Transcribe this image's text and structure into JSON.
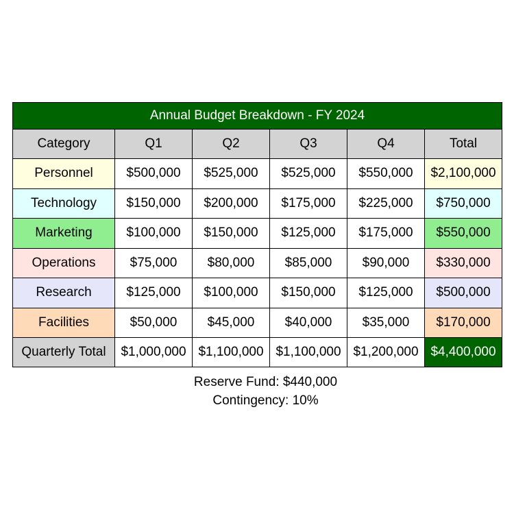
{
  "chart_data": {
    "type": "table",
    "title": "Annual Budget Breakdown - FY 2024",
    "columns": [
      "Category",
      "Q1",
      "Q2",
      "Q3",
      "Q4",
      "Total"
    ],
    "rows": [
      {
        "category": "Personnel",
        "values": [
          "$500,000",
          "$525,000",
          "$525,000",
          "$550,000"
        ],
        "total": "$2,100,000",
        "color": "#ffffe0"
      },
      {
        "category": "Technology",
        "values": [
          "$150,000",
          "$200,000",
          "$175,000",
          "$225,000"
        ],
        "total": "$750,000",
        "color": "#e0ffff"
      },
      {
        "category": "Marketing",
        "values": [
          "$100,000",
          "$150,000",
          "$125,000",
          "$175,000"
        ],
        "total": "$550,000",
        "color": "#90ee90"
      },
      {
        "category": "Operations",
        "values": [
          "$75,000",
          "$80,000",
          "$85,000",
          "$90,000"
        ],
        "total": "$330,000",
        "color": "#ffe4e1"
      },
      {
        "category": "Research",
        "values": [
          "$125,000",
          "$100,000",
          "$150,000",
          "$125,000"
        ],
        "total": "$500,000",
        "color": "#e6e6fa"
      },
      {
        "category": "Facilities",
        "values": [
          "$50,000",
          "$45,000",
          "$40,000",
          "$35,000"
        ],
        "total": "$170,000",
        "color": "#ffdab9"
      }
    ],
    "quarterly_total": {
      "label": "Quarterly Total",
      "values": [
        "$1,000,000",
        "$1,100,000",
        "$1,100,000",
        "$1,200,000"
      ],
      "total": "$4,400,000"
    },
    "notes": [
      "Reserve Fund: $440,000",
      "Contingency: 10%"
    ],
    "header_color": "#d3d3d3",
    "accent_color": "#006400"
  }
}
